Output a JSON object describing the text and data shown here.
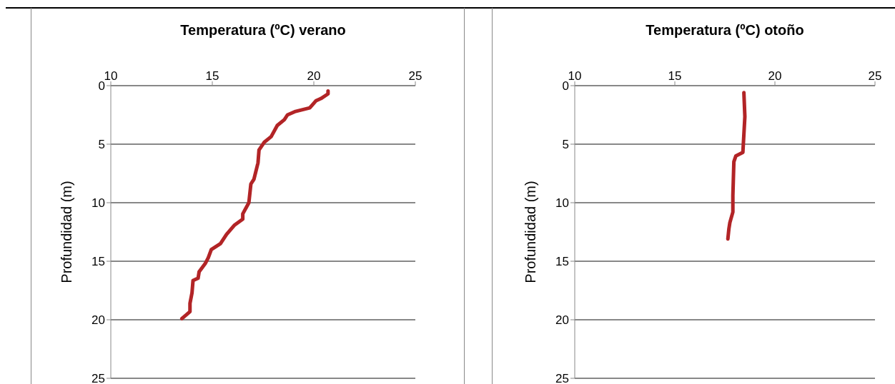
{
  "chart_data": [
    {
      "type": "line",
      "title": "Temperatura (ºC) verano",
      "ylabel": "Profundidad (m)",
      "xlim": [
        10,
        25
      ],
      "xticks": [
        10,
        15,
        20,
        25
      ],
      "ylim": [
        25,
        0
      ],
      "yticks": [
        0,
        5,
        10,
        15,
        20,
        25
      ],
      "grid": "y",
      "legend": false,
      "marker": "none",
      "line_style": "solid",
      "series": [
        {
          "color": "#b22426",
          "x": [
            20.7,
            20.7,
            20.35,
            20.1,
            19.8,
            19.1,
            18.7,
            18.55,
            18.2,
            17.9,
            17.55,
            17.3,
            17.25,
            17.05,
            16.9,
            16.8,
            16.5,
            16.5,
            16.1,
            15.7,
            15.4,
            14.95,
            14.8,
            14.65,
            14.35,
            14.3,
            14.05,
            14.0,
            13.9,
            13.9,
            13.5
          ],
          "values": [
            0.45,
            0.7,
            1.1,
            1.3,
            1.9,
            2.2,
            2.5,
            2.9,
            3.4,
            4.35,
            4.85,
            5.5,
            6.6,
            8.0,
            8.4,
            10.0,
            10.95,
            11.4,
            11.9,
            12.7,
            13.5,
            14.0,
            14.7,
            15.2,
            15.9,
            16.45,
            16.65,
            17.7,
            18.6,
            19.3,
            19.9
          ]
        }
      ]
    },
    {
      "type": "line",
      "title": "Temperatura (ºC) otoño",
      "ylabel": "Profundidad (m)",
      "xlim": [
        10,
        25
      ],
      "xticks": [
        10,
        15,
        20,
        25
      ],
      "ylim": [
        25,
        0
      ],
      "yticks": [
        0,
        5,
        10,
        15,
        20,
        25
      ],
      "grid": "y",
      "legend": false,
      "marker": "none",
      "line_style": "solid",
      "series": [
        {
          "color": "#b22426",
          "x": [
            18.45,
            18.5,
            18.4,
            18.05,
            17.95,
            17.9,
            17.9,
            17.75,
            17.7,
            17.65
          ],
          "values": [
            0.6,
            2.65,
            5.7,
            6.0,
            6.5,
            9.4,
            10.8,
            11.7,
            12.25,
            13.1
          ]
        }
      ]
    }
  ]
}
